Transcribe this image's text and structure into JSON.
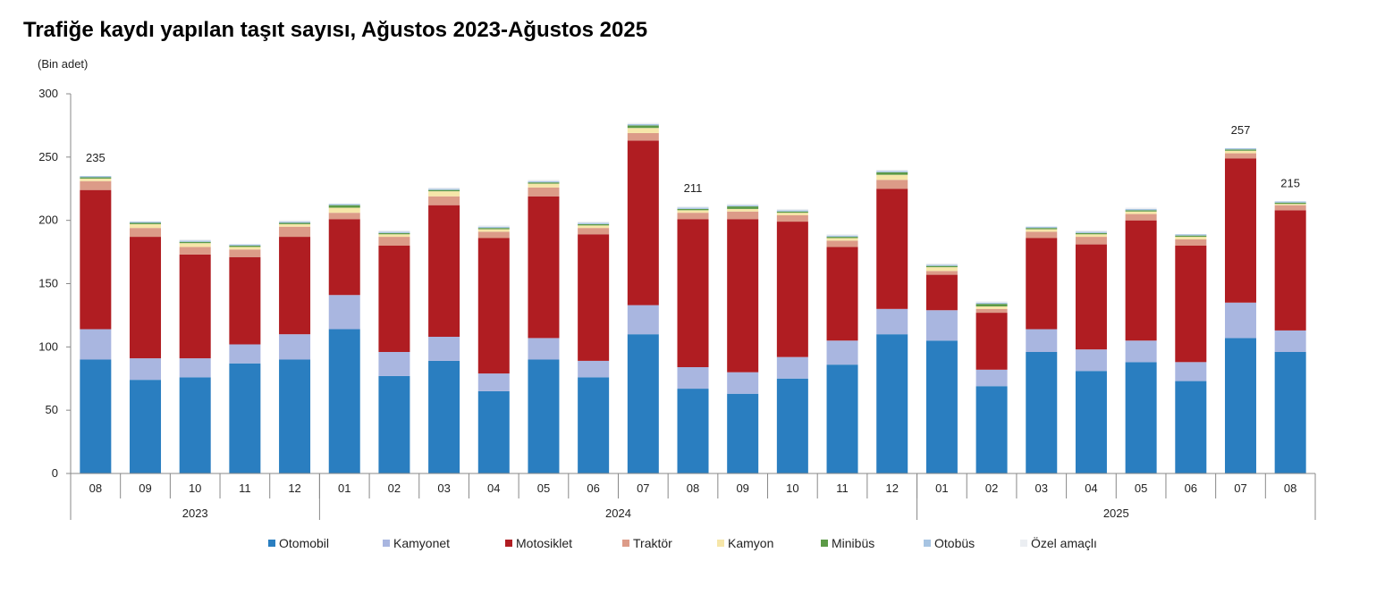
{
  "chart_data": {
    "type": "bar",
    "stacked": true,
    "title": "Trafiğe kaydı yapılan taşıt sayısı, Ağustos 2023-Ağustos 2025",
    "ylabel": "(Bin adet)",
    "ylim": [
      0,
      300
    ],
    "yticks": [
      "0",
      "50",
      "100",
      "150",
      "200",
      "250",
      "300"
    ],
    "categories": [
      "08",
      "09",
      "10",
      "11",
      "12",
      "01",
      "02",
      "03",
      "04",
      "05",
      "06",
      "07",
      "08",
      "09",
      "10",
      "11",
      "12",
      "01",
      "02",
      "03",
      "04",
      "05",
      "06",
      "07",
      "08"
    ],
    "years": [
      {
        "label": "2023",
        "start": 0,
        "end": 4
      },
      {
        "label": "2024",
        "start": 5,
        "end": 16
      },
      {
        "label": "2025",
        "start": 17,
        "end": 24
      }
    ],
    "series": [
      {
        "name": "Otomobil",
        "color": "#2a7ec0",
        "values": [
          90,
          74,
          76,
          87,
          90,
          114,
          77,
          89,
          65,
          90,
          76,
          110,
          67,
          63,
          75,
          86,
          110,
          105,
          69,
          96,
          81,
          88,
          73,
          107,
          96
        ]
      },
      {
        "name": "Kamyonet",
        "color": "#a9b6e0",
        "values": [
          24,
          17,
          15,
          15,
          20,
          27,
          19,
          19,
          14,
          17,
          13,
          23,
          17,
          17,
          17,
          19,
          20,
          24,
          13,
          18,
          17,
          17,
          15,
          28,
          17
        ]
      },
      {
        "name": "Motosiklet",
        "color": "#b01d22",
        "values": [
          110,
          96,
          82,
          69,
          77,
          60,
          84,
          104,
          107,
          112,
          100,
          130,
          117,
          121,
          107,
          74,
          95,
          28,
          45,
          72,
          83,
          95,
          92,
          114,
          95
        ]
      },
      {
        "name": "Traktör",
        "color": "#dc9b88",
        "values": [
          7,
          7,
          6,
          6,
          8,
          5,
          7,
          7,
          5,
          7,
          5,
          6,
          5,
          6,
          5,
          5,
          7,
          3,
          3,
          5,
          6,
          5,
          5,
          4,
          4
        ]
      },
      {
        "name": "Kamyon",
        "color": "#f6e6a9",
        "values": [
          2,
          3,
          3,
          2,
          2,
          4,
          2,
          4,
          2,
          3,
          2,
          4,
          2,
          2,
          2,
          2,
          4,
          3,
          2,
          2,
          2,
          2,
          2,
          2,
          1
        ]
      },
      {
        "name": "Minibüs",
        "color": "#5c9a47",
        "values": [
          1,
          1,
          1,
          1,
          1,
          2,
          1,
          1,
          1,
          1,
          1,
          2,
          1,
          2,
          1,
          1,
          2,
          1,
          2,
          1,
          1,
          1,
          1,
          1,
          1
        ]
      },
      {
        "name": "Otobüs",
        "color": "#a7c4e2",
        "values": [
          1,
          1,
          1,
          1,
          1,
          1,
          1,
          1,
          1,
          1,
          1,
          1,
          1,
          1,
          1,
          1,
          1,
          1,
          1,
          1,
          1,
          1,
          1,
          1,
          1
        ]
      },
      {
        "name": "Özel amaçlı",
        "color": "#ebeef2",
        "values": [
          0,
          0,
          1,
          0,
          1,
          0,
          1,
          1,
          1,
          1,
          1,
          1,
          1,
          1,
          1,
          1,
          1,
          1,
          1,
          0,
          1,
          1,
          0,
          0,
          0
        ]
      }
    ],
    "data_labels": [
      {
        "index": 0,
        "text": "235"
      },
      {
        "index": 12,
        "text": "211"
      },
      {
        "index": 23,
        "text": "257"
      },
      {
        "index": 24,
        "text": "215"
      }
    ],
    "legend_position": "bottom",
    "grid": false
  }
}
